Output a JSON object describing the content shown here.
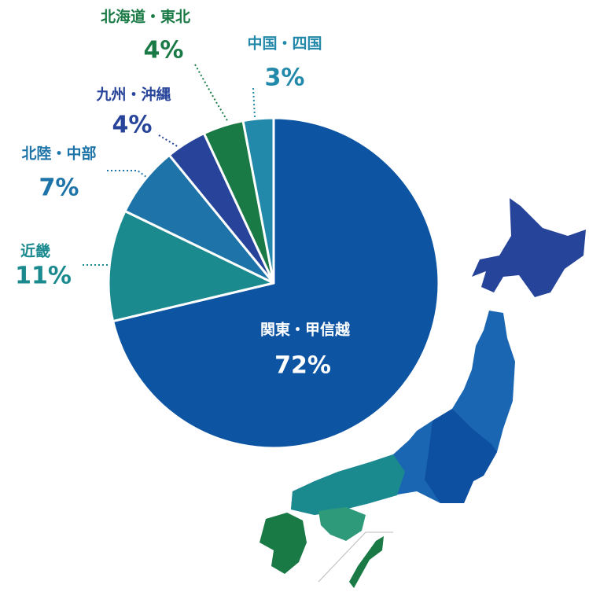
{
  "chart_data": {
    "type": "pie",
    "categories": [
      "関東・甲信越",
      "近畿",
      "北陸・中部",
      "九州・沖縄",
      "北海道・東北",
      "中国・四国"
    ],
    "values": [
      72,
      11,
      7,
      4,
      4,
      3
    ],
    "value_labels": [
      "72%",
      "11%",
      "7%",
      "4%",
      "4%",
      "3%"
    ],
    "colors": [
      "#0d55a3",
      "#1b8a8f",
      "#1e74a8",
      "#27449a",
      "#1a7a45",
      "#2389aa"
    ]
  }
}
